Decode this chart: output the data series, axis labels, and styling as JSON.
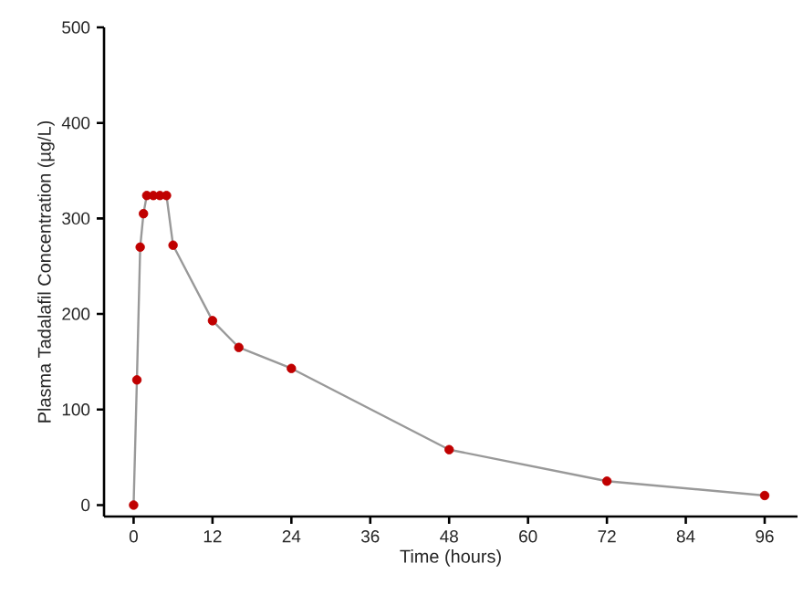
{
  "chart_data": {
    "type": "line",
    "xlabel": "Time (hours)",
    "ylabel": "Plasma Tadalafil Concentration (µg/L)",
    "x": [
      0,
      0.5,
      1,
      1.5,
      2,
      3,
      4,
      5,
      6,
      12,
      16,
      24,
      48,
      72,
      96
    ],
    "series": [
      {
        "color": "#999999",
        "colors": [
          "#c00000",
          "#c00000",
          "#c00000",
          "#c00000",
          "#c00000",
          "#c00000",
          "#c00000",
          "#c00000",
          "#c00000",
          "#c00000",
          "#c00000",
          "#c00000",
          "#c00000",
          "#c00000",
          "#c00000"
        ],
        "values": [
          0,
          131,
          270,
          305,
          324,
          324,
          324,
          324,
          272,
          193,
          165,
          143,
          58,
          25,
          10
        ]
      }
    ],
    "xlim": [
      -4.5,
      101
    ],
    "ylim": [
      -12,
      500
    ],
    "xticks": [
      0,
      12,
      24,
      36,
      48,
      60,
      72,
      84,
      96
    ],
    "yticks": [
      0,
      100,
      200,
      300,
      400,
      500
    ],
    "marker": "circle",
    "line_style": "solid"
  }
}
